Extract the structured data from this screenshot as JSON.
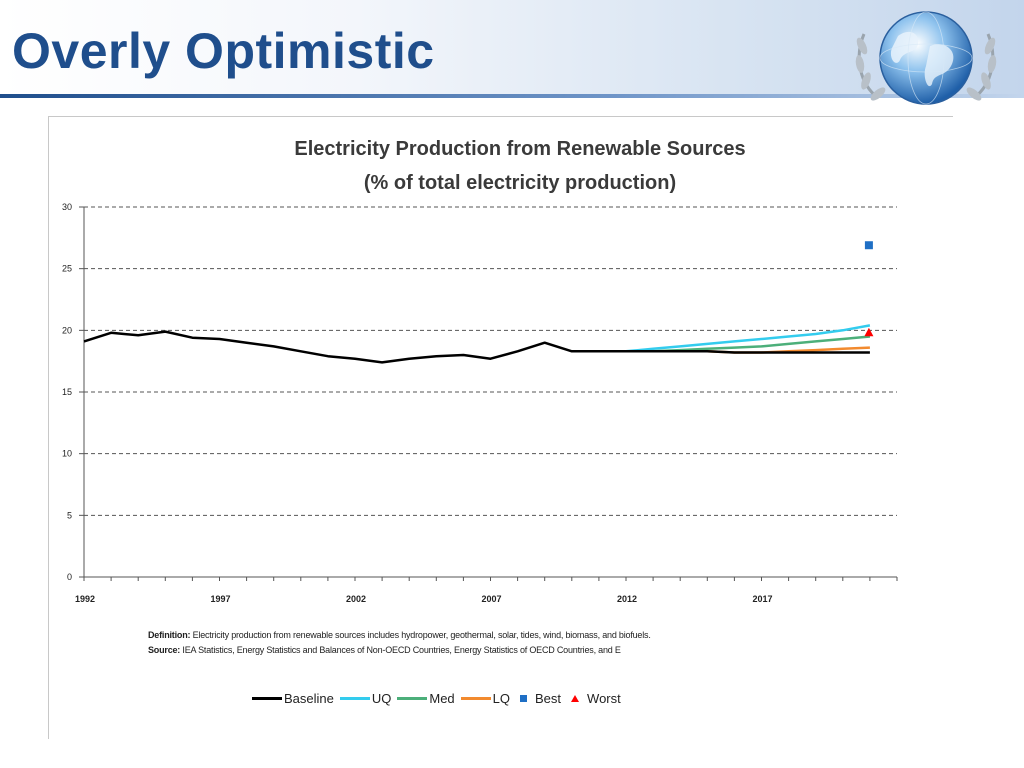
{
  "slide": {
    "title": "Overly Optimistic"
  },
  "notes": {
    "definition_label": "Definition:",
    "definition_text": " Electricity production from renewable sources includes hydropower, geothermal, solar, tides, wind, biomass, and biofuels.",
    "source_label": "Source:",
    "source_text": " IEA Statistics, Energy Statistics and Balances of Non-OECD Countries, Energy Statistics of OECD Countries, and E"
  },
  "chart_data": {
    "type": "line",
    "title": "Electricity Production from Renewable Sources",
    "subtitle": "(% of total electricity production)",
    "xlabel": "",
    "ylabel": "",
    "xlim": [
      1992,
      2022
    ],
    "ylim": [
      0,
      30
    ],
    "y_ticks": [
      "0",
      "5",
      "10",
      "15",
      "20",
      "25",
      "30"
    ],
    "x_ticks": [
      "1992",
      "1997",
      "2002",
      "2007",
      "2012",
      "2017"
    ],
    "grid": "horizontal dashed",
    "legend_position": "bottom",
    "series": [
      {
        "name": "Baseline",
        "color": "#000000",
        "x": [
          1992,
          1993,
          1994,
          1995,
          1996,
          1997,
          1998,
          1999,
          2000,
          2001,
          2002,
          2003,
          2004,
          2005,
          2006,
          2007,
          2008,
          2009,
          2010,
          2011,
          2012,
          2013,
          2014,
          2015,
          2016,
          2017,
          2018,
          2019,
          2020,
          2021
        ],
        "values": [
          19.1,
          19.8,
          19.6,
          19.9,
          19.4,
          19.3,
          19.0,
          18.7,
          18.3,
          17.9,
          17.7,
          17.4,
          17.7,
          17.9,
          18.0,
          17.7,
          18.3,
          19.0,
          18.3,
          18.3,
          18.3,
          18.3,
          18.3,
          18.3,
          18.2,
          18.2,
          18.2,
          18.2,
          18.2,
          18.2
        ]
      },
      {
        "name": "UQ",
        "color": "#33ccee",
        "x": [
          2012,
          2013,
          2014,
          2015,
          2016,
          2017,
          2018,
          2019,
          2020,
          2021
        ],
        "values": [
          18.3,
          18.5,
          18.7,
          18.9,
          19.1,
          19.3,
          19.5,
          19.7,
          20.0,
          20.4
        ]
      },
      {
        "name": "Med",
        "color": "#4caf7a",
        "x": [
          2012,
          2013,
          2014,
          2015,
          2016,
          2017,
          2018,
          2019,
          2020,
          2021
        ],
        "values": [
          18.3,
          18.3,
          18.4,
          18.5,
          18.6,
          18.7,
          18.9,
          19.1,
          19.3,
          19.5
        ]
      },
      {
        "name": "LQ",
        "color": "#f28a2e",
        "x": [
          2012,
          2013,
          2014,
          2015,
          2016,
          2017,
          2018,
          2019,
          2020,
          2021
        ],
        "values": [
          18.3,
          18.3,
          18.3,
          18.3,
          18.2,
          18.2,
          18.3,
          18.4,
          18.5,
          18.6
        ]
      }
    ],
    "points": [
      {
        "name": "Best",
        "color": "#1f6fc5",
        "marker": "square",
        "x": 2021,
        "y": 26.9
      },
      {
        "name": "Worst",
        "color": "#ff0000",
        "marker": "triangle",
        "x": 2021,
        "y": 19.8
      }
    ]
  }
}
